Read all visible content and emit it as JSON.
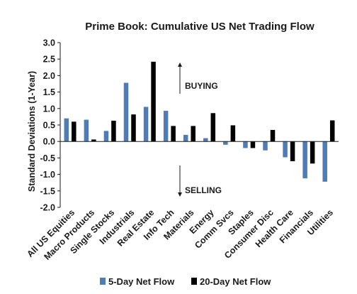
{
  "chart_data": {
    "type": "bar",
    "title": "Prime Book: Cumulative US Net Trading Flow",
    "ylabel": "Standard Deviations (1-Year)",
    "xlabel": "",
    "ylim": [
      -2.0,
      3.0
    ],
    "yticks": [
      "3.0",
      "2.5",
      "2.0",
      "1.5",
      "1.0",
      "0.5",
      "0.0",
      "-0.5",
      "-1.0",
      "-1.5",
      "-2.0"
    ],
    "categories": [
      "All US Equities",
      "Macro Products",
      "Single Stocks",
      "Industrials",
      "Real Estate",
      "Info Tech",
      "Materials",
      "Energy",
      "Comm Svcs",
      "Staples",
      "Consumer Disc",
      "Health Care",
      "Financials",
      "Utilities"
    ],
    "series": [
      {
        "name": "5-Day Net Flow",
        "color": "#4f7bb6",
        "values": [
          0.7,
          0.66,
          0.32,
          1.78,
          1.05,
          0.93,
          0.2,
          0.1,
          -0.1,
          -0.2,
          -0.27,
          -0.48,
          -1.12,
          -1.22
        ]
      },
      {
        "name": "20-Day Net Flow",
        "color": "#000000",
        "values": [
          0.6,
          0.06,
          0.63,
          0.82,
          2.42,
          0.47,
          0.47,
          0.86,
          0.49,
          -0.2,
          0.35,
          -0.6,
          -0.67,
          0.64
        ]
      }
    ],
    "annotations": {
      "buying": "BUYING",
      "selling": "SELLING"
    },
    "grid": false,
    "legend": "bottom"
  }
}
